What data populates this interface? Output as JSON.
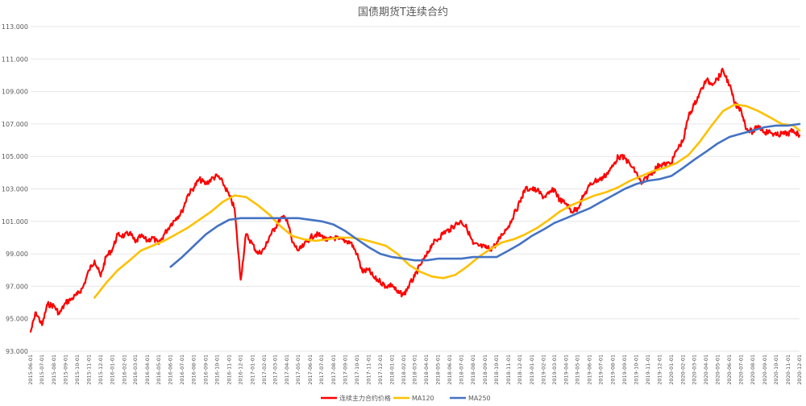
{
  "chart_data": {
    "type": "line",
    "title": "国债期货T连续合约",
    "xlabel": "",
    "ylabel": "",
    "ylim": [
      93.0,
      113.0
    ],
    "y_ticks": [
      "113.000",
      "111.000",
      "109.000",
      "107.000",
      "105.000",
      "103.000",
      "101.000",
      "99.000",
      "97.000",
      "95.000",
      "93.000"
    ],
    "x_ticks": [
      "2015-06-01",
      "2015-07-01",
      "2015-08-01",
      "2015-09-01",
      "2015-10-01",
      "2015-11-01",
      "2015-12-01",
      "2016-01-01",
      "2016-02-01",
      "2016-03-01",
      "2016-04-01",
      "2016-05-01",
      "2016-06-01",
      "2016-07-01",
      "2016-08-01",
      "2016-09-01",
      "2016-10-01",
      "2016-11-01",
      "2016-12-01",
      "2017-01-01",
      "2017-02-01",
      "2017-03-01",
      "2017-04-01",
      "2017-05-01",
      "2017-06-01",
      "2017-07-01",
      "2017-08-01",
      "2017-09-01",
      "2017-10-01",
      "2017-11-01",
      "2017-12-01",
      "2018-01-01",
      "2018-02-01",
      "2018-03-01",
      "2018-04-01",
      "2018-05-01",
      "2018-06-01",
      "2018-07-01",
      "2018-08-01",
      "2018-09-01",
      "2018-10-01",
      "2018-11-01",
      "2018-12-01",
      "2019-01-01",
      "2019-02-01",
      "2019-03-01",
      "2019-04-01",
      "2019-05-01",
      "2019-06-01",
      "2019-07-01",
      "2019-08-01",
      "2019-09-01",
      "2019-10-01",
      "2019-11-01",
      "2019-12-01",
      "2020-01-01",
      "2020-02-01",
      "2020-03-01",
      "2020-04-01",
      "2020-05-01",
      "2020-06-01",
      "2020-07-01",
      "2020-08-01",
      "2020-09-01",
      "2020-10-01",
      "2020-11-01",
      "2020-12-01"
    ],
    "grid": true,
    "legend": "bottom",
    "series": [
      {
        "name": "连续主力合约价格",
        "color": "#ff0000",
        "x": [
          "2015-06-01",
          "2015-06-15",
          "2015-07-01",
          "2015-07-15",
          "2015-08-01",
          "2015-08-15",
          "2015-09-01",
          "2015-09-15",
          "2015-10-01",
          "2015-10-15",
          "2015-11-01",
          "2015-11-15",
          "2015-12-01",
          "2015-12-15",
          "2016-01-01",
          "2016-01-15",
          "2016-02-01",
          "2016-02-15",
          "2016-03-01",
          "2016-03-15",
          "2016-04-01",
          "2016-04-15",
          "2016-05-01",
          "2016-05-15",
          "2016-06-01",
          "2016-06-15",
          "2016-07-01",
          "2016-07-15",
          "2016-08-01",
          "2016-08-15",
          "2016-09-01",
          "2016-09-15",
          "2016-10-01",
          "2016-10-15",
          "2016-11-01",
          "2016-11-15",
          "2016-12-01",
          "2016-12-15",
          "2017-01-01",
          "2017-01-15",
          "2017-02-01",
          "2017-02-15",
          "2017-03-01",
          "2017-03-15",
          "2017-04-01",
          "2017-04-15",
          "2017-05-01",
          "2017-05-15",
          "2017-06-01",
          "2017-06-15",
          "2017-07-01",
          "2017-07-15",
          "2017-08-01",
          "2017-08-15",
          "2017-09-01",
          "2017-09-15",
          "2017-10-01",
          "2017-10-15",
          "2017-11-01",
          "2017-11-15",
          "2017-12-01",
          "2017-12-15",
          "2018-01-01",
          "2018-01-15",
          "2018-02-01",
          "2018-02-15",
          "2018-03-01",
          "2018-03-15",
          "2018-04-01",
          "2018-04-15",
          "2018-05-01",
          "2018-05-15",
          "2018-06-01",
          "2018-06-15",
          "2018-07-01",
          "2018-07-15",
          "2018-08-01",
          "2018-08-15",
          "2018-09-01",
          "2018-09-15",
          "2018-10-01",
          "2018-10-15",
          "2018-11-01",
          "2018-11-15",
          "2018-12-01",
          "2018-12-15",
          "2019-01-01",
          "2019-01-15",
          "2019-02-01",
          "2019-02-15",
          "2019-03-01",
          "2019-03-15",
          "2019-04-01",
          "2019-04-15",
          "2019-05-01",
          "2019-05-15",
          "2019-06-01",
          "2019-06-15",
          "2019-07-01",
          "2019-07-15",
          "2019-08-01",
          "2019-08-15",
          "2019-09-01",
          "2019-09-15",
          "2019-10-01",
          "2019-10-15",
          "2019-11-01",
          "2019-11-15",
          "2019-12-01",
          "2019-12-15",
          "2020-01-01",
          "2020-01-15",
          "2020-02-01",
          "2020-02-15",
          "2020-03-01",
          "2020-03-15",
          "2020-04-01",
          "2020-04-15",
          "2020-05-01",
          "2020-05-15",
          "2020-06-01",
          "2020-06-15",
          "2020-07-01",
          "2020-07-15",
          "2020-08-01",
          "2020-08-15",
          "2020-09-01",
          "2020-09-15",
          "2020-10-01",
          "2020-10-15",
          "2020-11-01",
          "2020-11-15",
          "2020-12-01"
        ],
        "values": [
          94.2,
          95.4,
          94.6,
          95.9,
          95.8,
          95.3,
          96.0,
          96.2,
          96.5,
          96.9,
          98.0,
          98.6,
          97.6,
          98.8,
          99.3,
          100.2,
          100.1,
          100.3,
          99.7,
          100.1,
          99.8,
          100.0,
          99.6,
          100.2,
          100.8,
          101.2,
          101.6,
          102.6,
          103.1,
          103.6,
          103.3,
          103.6,
          103.8,
          103.4,
          102.6,
          101.8,
          97.4,
          100.2,
          99.6,
          99.0,
          99.3,
          100.1,
          100.6,
          101.2,
          101.2,
          99.7,
          99.2,
          99.5,
          100.0,
          100.2,
          100.1,
          99.8,
          100.0,
          99.9,
          99.8,
          99.7,
          99.0,
          97.9,
          98.0,
          97.5,
          97.3,
          97.0,
          97.1,
          96.6,
          96.5,
          97.1,
          97.6,
          98.3,
          98.9,
          99.6,
          99.9,
          100.3,
          100.5,
          100.8,
          101.0,
          100.6,
          99.6,
          99.5,
          99.4,
          99.3,
          99.6,
          100.2,
          100.7,
          101.4,
          102.2,
          103.0,
          103.0,
          102.9,
          102.5,
          102.7,
          103.0,
          102.3,
          102.1,
          101.6,
          101.8,
          102.5,
          103.2,
          103.5,
          103.6,
          103.9,
          104.4,
          105.0,
          104.9,
          104.5,
          104.0,
          103.3,
          103.8,
          104.1,
          104.5,
          104.5,
          104.6,
          105.4,
          106.0,
          107.5,
          108.2,
          108.9,
          109.7,
          109.5,
          109.8,
          110.3,
          109.4,
          108.2,
          107.9,
          106.7,
          106.5,
          106.9,
          106.5,
          106.5,
          106.3,
          106.4,
          106.4,
          106.6,
          106.3
        ]
      },
      {
        "name": "MA120",
        "color": "#ffc000",
        "x": [
          "2015-11-15",
          "2015-12-15",
          "2016-01-15",
          "2016-02-15",
          "2016-03-15",
          "2016-04-15",
          "2016-05-15",
          "2016-06-15",
          "2016-07-15",
          "2016-08-15",
          "2016-09-15",
          "2016-10-15",
          "2016-11-15",
          "2016-12-15",
          "2017-01-15",
          "2017-02-15",
          "2017-03-15",
          "2017-04-15",
          "2017-05-15",
          "2017-06-15",
          "2017-07-15",
          "2017-08-15",
          "2017-09-15",
          "2017-10-15",
          "2017-11-15",
          "2017-12-15",
          "2018-01-15",
          "2018-02-15",
          "2018-03-15",
          "2018-04-15",
          "2018-05-15",
          "2018-06-15",
          "2018-07-15",
          "2018-08-15",
          "2018-09-15",
          "2018-10-15",
          "2018-11-15",
          "2018-12-15",
          "2019-01-15",
          "2019-02-15",
          "2019-03-15",
          "2019-04-15",
          "2019-05-15",
          "2019-06-15",
          "2019-07-15",
          "2019-08-15",
          "2019-09-15",
          "2019-10-15",
          "2019-11-15",
          "2019-12-15",
          "2020-01-15",
          "2020-02-15",
          "2020-03-15",
          "2020-04-15",
          "2020-05-15",
          "2020-06-15",
          "2020-07-15",
          "2020-08-15",
          "2020-09-15",
          "2020-10-15",
          "2020-11-15",
          "2020-12-01"
        ],
        "values": [
          96.3,
          97.2,
          98.0,
          98.6,
          99.2,
          99.5,
          99.8,
          100.2,
          100.6,
          101.1,
          101.6,
          102.2,
          102.6,
          102.5,
          102.0,
          101.4,
          100.7,
          100.1,
          99.9,
          99.8,
          99.9,
          100.0,
          100.0,
          99.9,
          99.7,
          99.5,
          99.0,
          98.3,
          97.9,
          97.6,
          97.5,
          97.7,
          98.2,
          98.8,
          99.3,
          99.7,
          99.9,
          100.2,
          100.6,
          101.1,
          101.6,
          102.0,
          102.3,
          102.6,
          102.8,
          103.1,
          103.5,
          103.8,
          104.1,
          104.3,
          104.6,
          105.1,
          105.9,
          106.9,
          107.8,
          108.2,
          108.1,
          107.8,
          107.4,
          107.0,
          106.9,
          106.6
        ]
      },
      {
        "name": "MA250",
        "color": "#4472c4",
        "x": [
          "2016-06-01",
          "2016-07-01",
          "2016-08-01",
          "2016-09-01",
          "2016-10-01",
          "2016-11-01",
          "2016-12-01",
          "2017-01-01",
          "2017-02-01",
          "2017-03-01",
          "2017-04-01",
          "2017-05-01",
          "2017-06-01",
          "2017-07-01",
          "2017-08-01",
          "2017-09-01",
          "2017-10-01",
          "2017-11-01",
          "2017-12-01",
          "2018-01-01",
          "2018-02-01",
          "2018-03-01",
          "2018-04-01",
          "2018-05-01",
          "2018-06-01",
          "2018-07-01",
          "2018-08-01",
          "2018-09-01",
          "2018-10-01",
          "2018-11-01",
          "2018-12-01",
          "2019-01-01",
          "2019-02-01",
          "2019-03-01",
          "2019-04-01",
          "2019-05-01",
          "2019-06-01",
          "2019-07-01",
          "2019-08-01",
          "2019-09-01",
          "2019-10-01",
          "2019-11-01",
          "2019-12-01",
          "2020-01-01",
          "2020-02-01",
          "2020-03-01",
          "2020-04-01",
          "2020-05-01",
          "2020-06-01",
          "2020-07-01",
          "2020-08-01",
          "2020-09-01",
          "2020-10-01",
          "2020-11-01",
          "2020-12-01"
        ],
        "values": [
          98.2,
          98.8,
          99.5,
          100.2,
          100.7,
          101.1,
          101.2,
          101.2,
          101.2,
          101.2,
          101.2,
          101.2,
          101.1,
          101.0,
          100.8,
          100.4,
          99.9,
          99.4,
          99.0,
          98.8,
          98.7,
          98.6,
          98.6,
          98.7,
          98.7,
          98.7,
          98.8,
          98.8,
          98.8,
          99.2,
          99.6,
          100.1,
          100.5,
          100.9,
          101.2,
          101.5,
          101.8,
          102.2,
          102.6,
          103.0,
          103.3,
          103.5,
          103.6,
          103.8,
          104.3,
          104.8,
          105.3,
          105.8,
          106.2,
          106.4,
          106.6,
          106.8,
          106.9,
          106.9,
          107.0
        ]
      }
    ]
  }
}
